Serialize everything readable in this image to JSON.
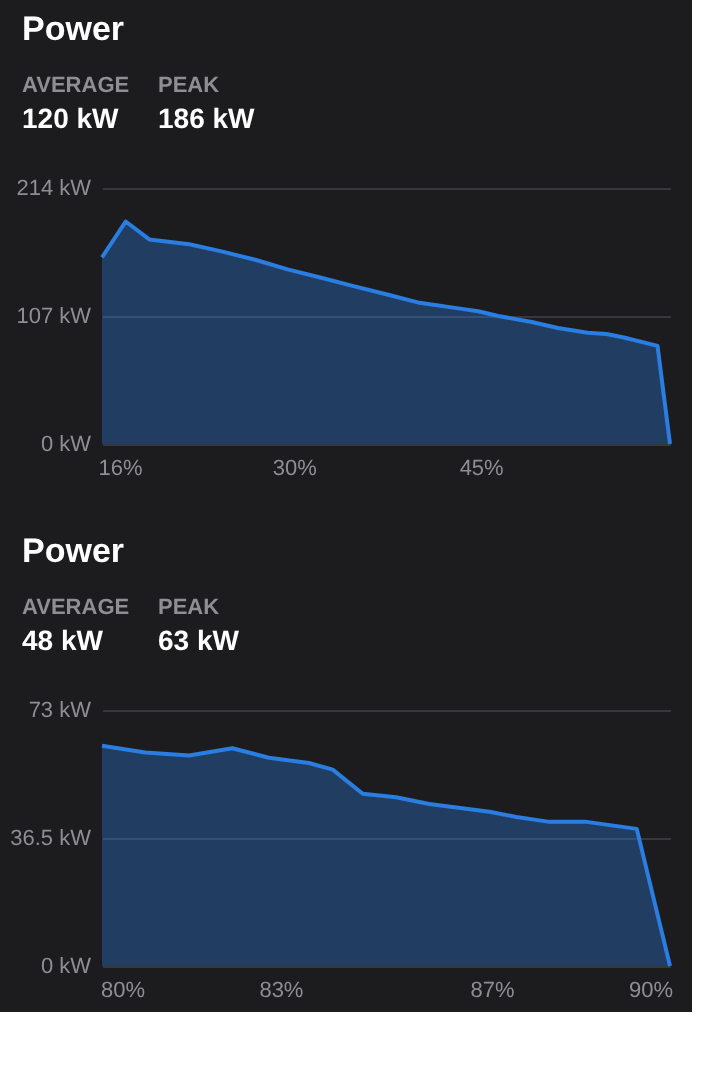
{
  "chart_data": [
    {
      "type": "area",
      "title": "Power",
      "annotations": [
        "AVERAGE",
        "120 kW",
        "PEAK",
        "186 kW"
      ],
      "xlim": [
        14.6,
        60.2
      ],
      "xticks": [
        {
          "value": 16,
          "label": "16%"
        },
        {
          "value": 30,
          "label": "30%"
        },
        {
          "value": 45,
          "label": "45%"
        }
      ],
      "ylim": [
        0,
        214
      ],
      "yticks": [
        {
          "value": 0,
          "label": "0 kW"
        },
        {
          "value": 107,
          "label": "107 kW"
        },
        {
          "value": 214,
          "label": "214 kW"
        }
      ],
      "grid": "y",
      "series": [
        {
          "color": "#2a7de1",
          "x": [
            14.6,
            16.5,
            18.4,
            21.6,
            24.2,
            26.9,
            29.5,
            32.2,
            34.8,
            37.5,
            40.1,
            42.8,
            44.8,
            46.4,
            49.1,
            51.2,
            53.6,
            55.1,
            56.5,
            59.2,
            60.2
          ],
          "values": [
            156,
            186,
            171,
            167,
            161,
            154,
            146,
            139,
            132,
            125,
            118,
            114,
            111,
            107,
            102,
            97,
            93,
            92,
            89,
            82,
            0
          ]
        }
      ]
    },
    {
      "type": "area",
      "title": "Power",
      "annotations": [
        "AVERAGE",
        "48 kW",
        "PEAK",
        "63 kW"
      ],
      "xlim": [
        79.62,
        90.38
      ],
      "xticks": [
        {
          "value": 80,
          "label": "80%"
        },
        {
          "value": 83,
          "label": "83%"
        },
        {
          "value": 87,
          "label": "87%"
        },
        {
          "value": 90,
          "label": "90%"
        }
      ],
      "ylim": [
        0,
        73
      ],
      "yticks": [
        {
          "value": 0,
          "label": "0 kW"
        },
        {
          "value": 36.5,
          "label": "36.5 kW"
        },
        {
          "value": 73,
          "label": "73 kW"
        }
      ],
      "grid": "y",
      "series": [
        {
          "color": "#2a7de1",
          "x": [
            79.62,
            80.44,
            81.27,
            82.09,
            82.78,
            83.54,
            83.99,
            84.56,
            85.19,
            85.82,
            86.96,
            87.47,
            88.1,
            88.8,
            89.75,
            90.38
          ],
          "values": [
            62.8,
            60.9,
            60.0,
            62.1,
            59.4,
            57.9,
            56.0,
            49.1,
            48.1,
            46.2,
            44.0,
            42.5,
            41.1,
            41.1,
            39.1,
            0
          ]
        }
      ]
    }
  ]
}
